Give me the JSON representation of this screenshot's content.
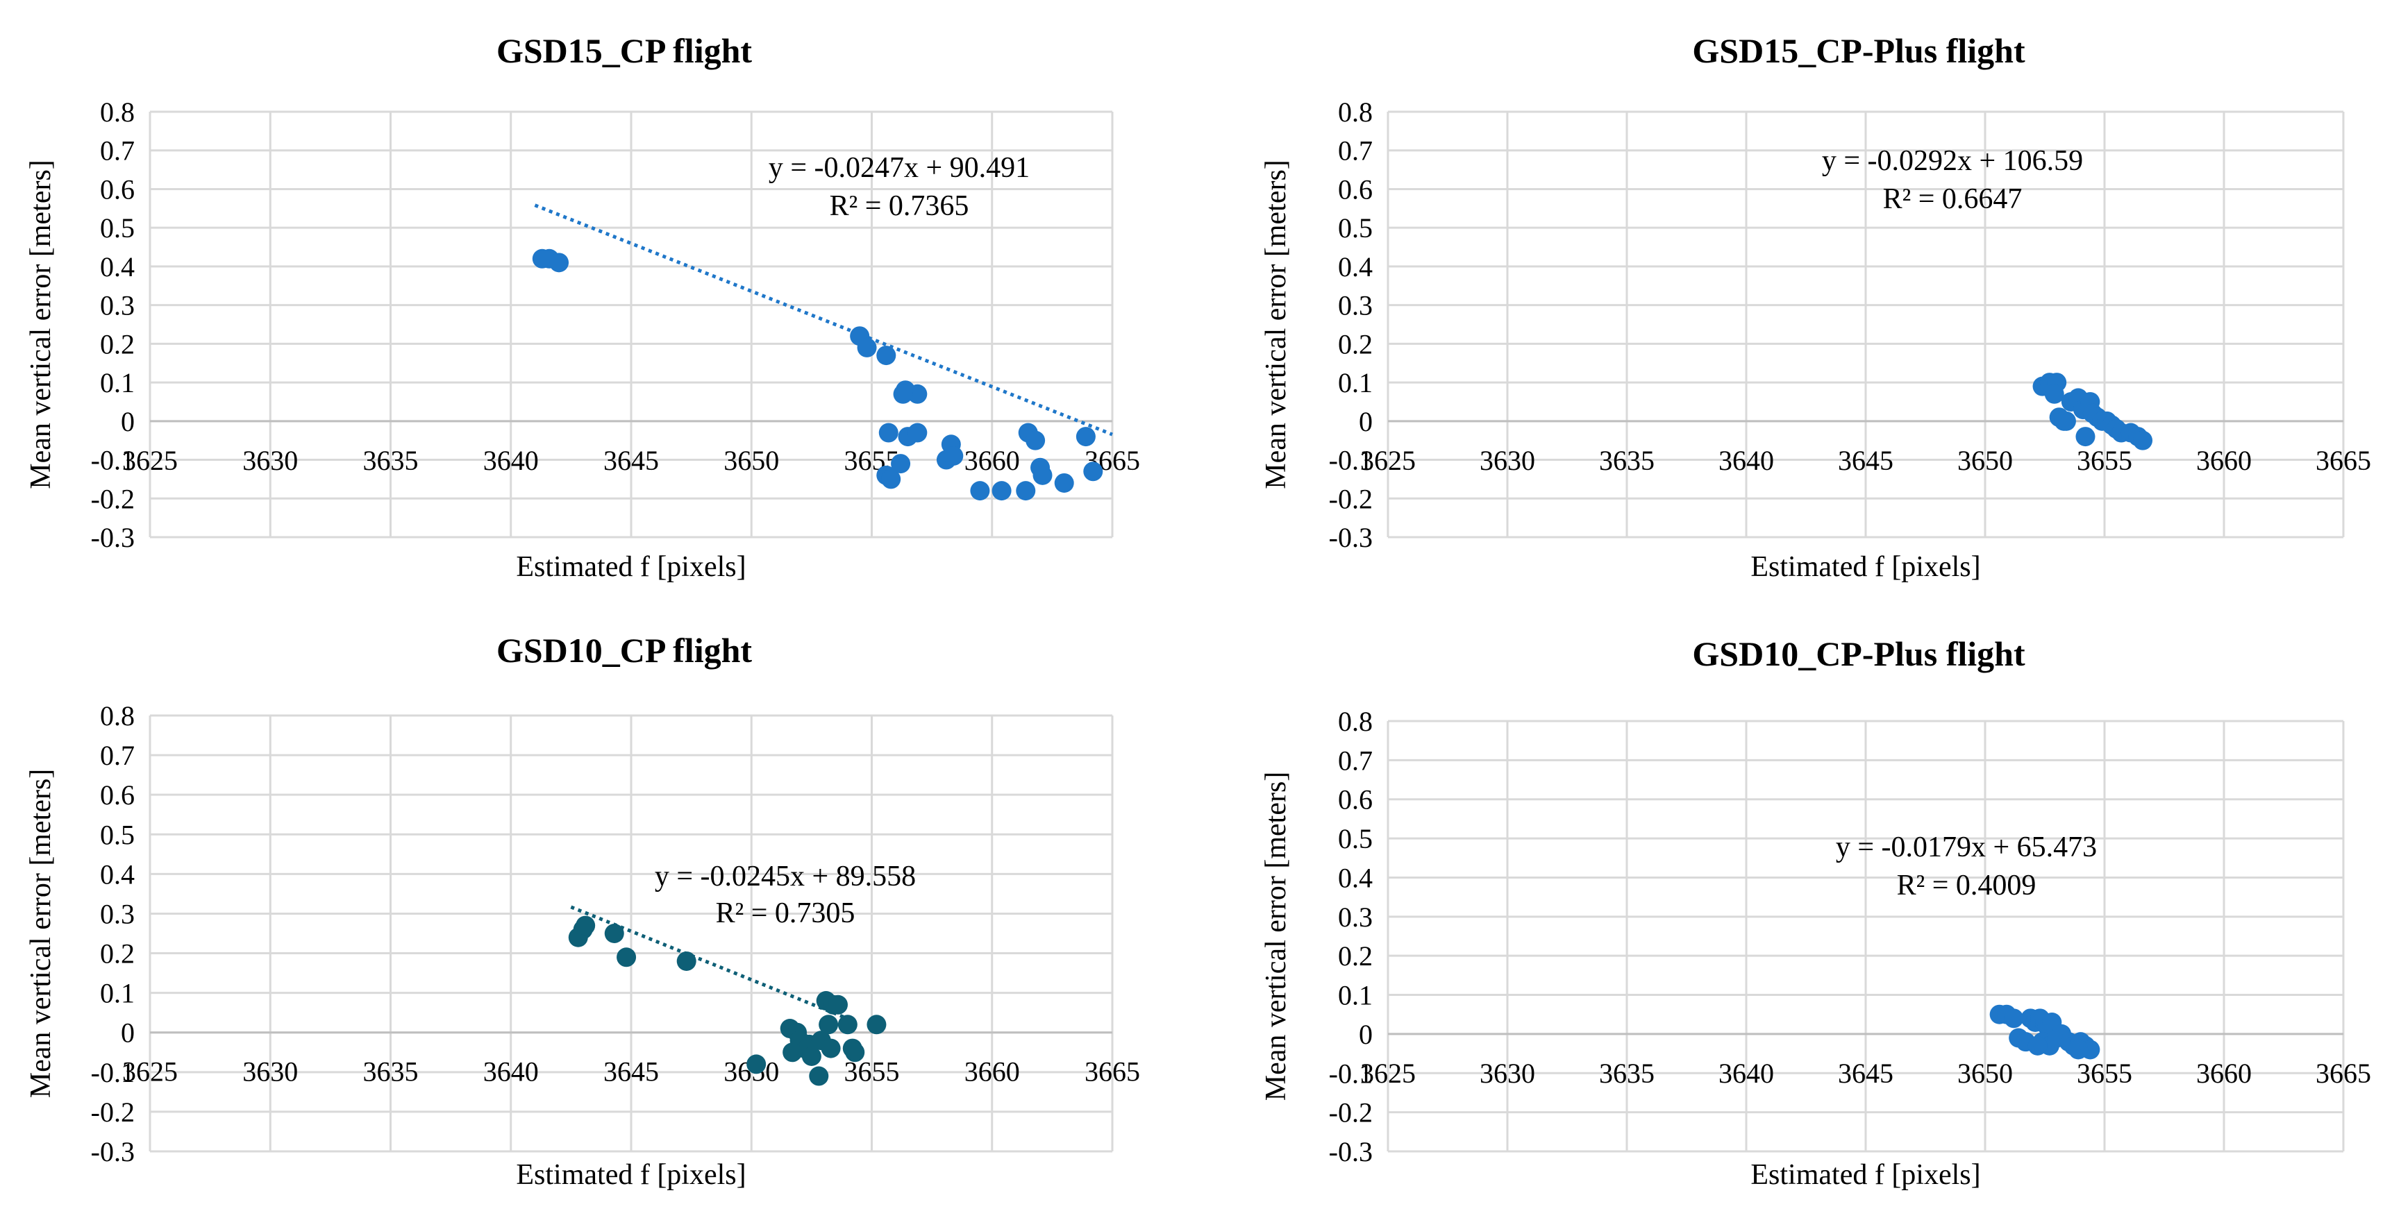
{
  "chart_data": [
    {
      "type": "scatter",
      "title": "GSD15_CP flight",
      "xlabel": "Estimated f [pixels]",
      "ylabel": "Mean vertical error [meters]",
      "xlim": [
        3625,
        3665
      ],
      "ylim": [
        -0.3,
        0.8
      ],
      "xticks": [
        "3625",
        "3630",
        "3635",
        "3640",
        "3645",
        "3650",
        "3655",
        "3660",
        "3665"
      ],
      "yticks": [
        "-0.3",
        "-0.2",
        "-0.1",
        "0",
        "0.1",
        "0.2",
        "0.3",
        "0.4",
        "0.5",
        "0.6",
        "0.7",
        "0.8"
      ],
      "grid": true,
      "color": "#1f77c9",
      "trendline": {
        "slope": -0.0247,
        "intercept": 90.491,
        "x_range": [
          3641,
          3665
        ]
      },
      "equation": "y = -0.0247x + 90.491",
      "r2": "R² = 0.7365",
      "points": [
        [
          3641.3,
          0.42
        ],
        [
          3641.6,
          0.42
        ],
        [
          3642.0,
          0.41
        ],
        [
          3654.5,
          0.22
        ],
        [
          3654.8,
          0.19
        ],
        [
          3655.6,
          0.17
        ],
        [
          3656.4,
          0.08
        ],
        [
          3656.9,
          0.07
        ],
        [
          3656.3,
          0.07
        ],
        [
          3655.7,
          -0.03
        ],
        [
          3656.5,
          -0.04
        ],
        [
          3656.9,
          -0.03
        ],
        [
          3655.6,
          -0.14
        ],
        [
          3655.8,
          -0.15
        ],
        [
          3656.2,
          -0.11
        ],
        [
          3658.3,
          -0.06
        ],
        [
          3658.1,
          -0.1
        ],
        [
          3658.4,
          -0.09
        ],
        [
          3659.5,
          -0.18
        ],
        [
          3660.4,
          -0.18
        ],
        [
          3661.5,
          -0.03
        ],
        [
          3661.8,
          -0.05
        ],
        [
          3662.0,
          -0.12
        ],
        [
          3661.4,
          -0.18
        ],
        [
          3662.1,
          -0.14
        ],
        [
          3663.0,
          -0.16
        ],
        [
          3663.9,
          -0.04
        ],
        [
          3664.2,
          -0.13
        ]
      ]
    },
    {
      "type": "scatter",
      "title": "GSD15_CP-Plus flight",
      "xlabel": "Estimated f [pixels]",
      "ylabel": "Mean vertical error [meters]",
      "xlim": [
        3625,
        3665
      ],
      "ylim": [
        -0.3,
        0.8
      ],
      "xticks": [
        "3625",
        "3630",
        "3635",
        "3640",
        "3645",
        "3650",
        "3655",
        "3660",
        "3665"
      ],
      "yticks": [
        "-0.3",
        "-0.2",
        "-0.1",
        "0",
        "0.1",
        "0.2",
        "0.3",
        "0.4",
        "0.5",
        "0.6",
        "0.7",
        "0.8"
      ],
      "grid": true,
      "color": "#1f77c9",
      "trendline": null,
      "equation": "y = -0.0292x + 106.59",
      "r2": "R² = 0.6647",
      "points": [
        [
          3652.4,
          0.09
        ],
        [
          3652.7,
          0.1
        ],
        [
          3653.0,
          0.1
        ],
        [
          3652.9,
          0.07
        ],
        [
          3653.1,
          0.01
        ],
        [
          3653.4,
          0.0
        ],
        [
          3653.6,
          0.05
        ],
        [
          3653.9,
          0.06
        ],
        [
          3654.1,
          0.03
        ],
        [
          3654.4,
          0.05
        ],
        [
          3654.5,
          0.02
        ],
        [
          3654.7,
          0.01
        ],
        [
          3654.9,
          0.0
        ],
        [
          3655.1,
          0.0
        ],
        [
          3655.3,
          -0.01
        ],
        [
          3655.5,
          -0.02
        ],
        [
          3655.7,
          -0.03
        ],
        [
          3656.1,
          -0.03
        ],
        [
          3656.4,
          -0.04
        ],
        [
          3656.6,
          -0.05
        ],
        [
          3654.2,
          -0.04
        ],
        [
          3653.3,
          0.0
        ]
      ]
    },
    {
      "type": "scatter",
      "title": "GSD10_CP flight",
      "xlabel": "Estimated f [pixels]",
      "ylabel": "Mean vertical error [meters]",
      "xlim": [
        3625,
        3665
      ],
      "ylim": [
        -0.3,
        0.8
      ],
      "xticks": [
        "3625",
        "3630",
        "3635",
        "3640",
        "3645",
        "3650",
        "3655",
        "3660",
        "3665"
      ],
      "yticks": [
        "-0.3",
        "-0.2",
        "-0.1",
        "0",
        "0.1",
        "0.2",
        "0.3",
        "0.4",
        "0.5",
        "0.6",
        "0.7",
        "0.8"
      ],
      "grid": true,
      "color": "#0e5f76",
      "trendline": {
        "slope": -0.0245,
        "intercept": 89.558,
        "x_range": [
          3642.5,
          3654
        ]
      },
      "equation": "y = -0.0245x + 89.558",
      "r2": "R² = 0.7305",
      "points": [
        [
          3642.8,
          0.24
        ],
        [
          3643.0,
          0.26
        ],
        [
          3643.1,
          0.27
        ],
        [
          3644.3,
          0.25
        ],
        [
          3644.8,
          0.19
        ],
        [
          3647.3,
          0.18
        ],
        [
          3650.2,
          -0.08
        ],
        [
          3651.6,
          0.01
        ],
        [
          3651.9,
          0.0
        ],
        [
          3652.0,
          -0.02
        ],
        [
          3652.2,
          -0.04
        ],
        [
          3651.7,
          -0.05
        ],
        [
          3652.4,
          -0.03
        ],
        [
          3652.5,
          -0.06
        ],
        [
          3652.9,
          -0.02
        ],
        [
          3653.1,
          0.08
        ],
        [
          3653.4,
          0.07
        ],
        [
          3653.6,
          0.07
        ],
        [
          3653.2,
          0.02
        ],
        [
          3653.3,
          -0.04
        ],
        [
          3652.8,
          -0.11
        ],
        [
          3654.0,
          0.02
        ],
        [
          3654.2,
          -0.04
        ],
        [
          3654.3,
          -0.05
        ],
        [
          3655.2,
          0.02
        ]
      ]
    },
    {
      "type": "scatter",
      "title": "GSD10_CP-Plus flight",
      "xlabel": "Estimated f [pixels]",
      "ylabel": "Mean vertical error [meters]",
      "xlim": [
        3625,
        3665
      ],
      "ylim": [
        -0.3,
        0.8
      ],
      "xticks": [
        "3625",
        "3630",
        "3635",
        "3640",
        "3645",
        "3650",
        "3655",
        "3660",
        "3665"
      ],
      "yticks": [
        "-0.3",
        "-0.2",
        "-0.1",
        "0",
        "0.1",
        "0.2",
        "0.3",
        "0.4",
        "0.5",
        "0.6",
        "0.7",
        "0.8"
      ],
      "grid": true,
      "color": "#1f77c9",
      "trendline": null,
      "equation": "y = -0.0179x + 65.473",
      "r2": "R² = 0.4009",
      "points": [
        [
          3650.6,
          0.05
        ],
        [
          3650.9,
          0.05
        ],
        [
          3651.2,
          0.04
        ],
        [
          3651.4,
          -0.01
        ],
        [
          3651.7,
          -0.02
        ],
        [
          3651.9,
          0.04
        ],
        [
          3652.1,
          0.03
        ],
        [
          3652.3,
          0.04
        ],
        [
          3652.5,
          0.03
        ],
        [
          3652.6,
          0.02
        ],
        [
          3652.8,
          0.03
        ],
        [
          3652.4,
          -0.02
        ],
        [
          3652.7,
          -0.03
        ],
        [
          3653.0,
          -0.01
        ],
        [
          3653.2,
          0.0
        ],
        [
          3653.5,
          -0.02
        ],
        [
          3653.7,
          -0.03
        ],
        [
          3654.0,
          -0.02
        ],
        [
          3654.2,
          -0.03
        ],
        [
          3654.4,
          -0.04
        ],
        [
          3653.9,
          -0.04
        ],
        [
          3652.2,
          -0.03
        ]
      ]
    }
  ]
}
